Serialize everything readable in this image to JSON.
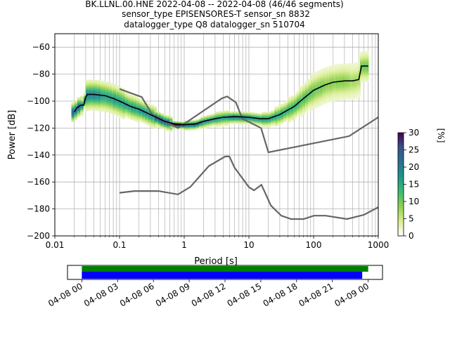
{
  "title_lines": [
    "BK.LLNL.00.HNE   2022-04-08 -- 2022-04-08  (46/46 segments)",
    "sensor_type EPISENSORES-T sensor_sn 8832",
    "datalogger_type Q8 datalogger_sn 510704"
  ],
  "chart_data": [
    {
      "type": "heatmap",
      "xlabel": "Period [s]",
      "ylabel": "Power [dB]",
      "xscale": "log",
      "xlim": [
        0.01,
        1000
      ],
      "ylim": [
        -200,
        -50
      ],
      "xticks": [
        {
          "v": 0.01,
          "label": "0.01"
        },
        {
          "v": 0.1,
          "label": "0.1"
        },
        {
          "v": 1,
          "label": "1"
        },
        {
          "v": 10,
          "label": "10"
        },
        {
          "v": 100,
          "label": "100"
        },
        {
          "v": 1000,
          "label": "1000"
        }
      ],
      "yticks": [
        {
          "v": -60,
          "label": "−60"
        },
        {
          "v": -80,
          "label": "−80"
        },
        {
          "v": -100,
          "label": "−100"
        },
        {
          "v": -120,
          "label": "−120"
        },
        {
          "v": -140,
          "label": "−140"
        },
        {
          "v": -160,
          "label": "−160"
        },
        {
          "v": -180,
          "label": "−180"
        },
        {
          "v": -200,
          "label": "−200"
        }
      ],
      "grid": true,
      "colorbar": {
        "label": "[%]",
        "range": [
          0,
          30
        ],
        "ticks": [
          0,
          5,
          10,
          15,
          20,
          25,
          30
        ],
        "colors": [
          "#ffffff",
          "#d9ed92",
          "#8fd14f",
          "#3cbb75",
          "#1f968b",
          "#2d708e",
          "#3b528b",
          "#440154"
        ]
      },
      "reference_models": [
        {
          "role": "high noise model",
          "color": "#666666",
          "points": [
            [
              0.1,
              -91
            ],
            [
              0.22,
              -97
            ],
            [
              0.32,
              -110
            ],
            [
              0.8,
              -120
            ],
            [
              3.8,
              -98
            ],
            [
              4.6,
              -96.5
            ],
            [
              6.3,
              -101
            ],
            [
              7.9,
              -113
            ],
            [
              15.4,
              -120
            ],
            [
              20,
              -138
            ],
            [
              354.8,
              -126
            ],
            [
              1000,
              -112
            ]
          ]
        },
        {
          "role": "low noise model",
          "color": "#666666",
          "points": [
            [
              0.1,
              -168
            ],
            [
              0.17,
              -166.7
            ],
            [
              0.4,
              -166.7
            ],
            [
              0.8,
              -169.2
            ],
            [
              1.24,
              -163.7
            ],
            [
              2.4,
              -148.2
            ],
            [
              4.3,
              -141.1
            ],
            [
              5,
              -141.1
            ],
            [
              6,
              -149.4
            ],
            [
              10,
              -163.8
            ],
            [
              12,
              -166.2
            ],
            [
              15.6,
              -162.1
            ],
            [
              21.9,
              -177.5
            ],
            [
              31.6,
              -185
            ],
            [
              45,
              -187.5
            ],
            [
              70,
              -187.5
            ],
            [
              101,
              -185
            ],
            [
              154,
              -185
            ],
            [
              328,
              -187.5
            ],
            [
              600,
              -184.4
            ],
            [
              1000,
              -178.7
            ]
          ]
        }
      ],
      "mode_curve": {
        "color": "#000000",
        "points": [
          [
            0.02,
            -108
          ],
          [
            0.022,
            -105
          ],
          [
            0.025,
            -103
          ],
          [
            0.028,
            -103
          ],
          [
            0.03,
            -97
          ],
          [
            0.032,
            -95
          ],
          [
            0.04,
            -95
          ],
          [
            0.06,
            -96
          ],
          [
            0.08,
            -98
          ],
          [
            0.1,
            -100
          ],
          [
            0.15,
            -104
          ],
          [
            0.2,
            -106
          ],
          [
            0.3,
            -110
          ],
          [
            0.5,
            -115
          ],
          [
            0.7,
            -117
          ],
          [
            1,
            -117.5
          ],
          [
            1.5,
            -117
          ],
          [
            2,
            -115
          ],
          [
            3,
            -113
          ],
          [
            4,
            -112
          ],
          [
            6,
            -111.5
          ],
          [
            10,
            -112
          ],
          [
            15,
            -113
          ],
          [
            20,
            -113
          ],
          [
            30,
            -110
          ],
          [
            50,
            -104
          ],
          [
            70,
            -98
          ],
          [
            100,
            -92
          ],
          [
            150,
            -88
          ],
          [
            200,
            -86
          ],
          [
            300,
            -85
          ],
          [
            400,
            -85
          ],
          [
            500,
            -84
          ],
          [
            550,
            -74
          ],
          [
            700,
            -74
          ]
        ]
      },
      "psd_histogram": [
        {
          "x0": 0.018,
          "x1": 0.025,
          "y": -107,
          "spread": 8,
          "hot": 0.7
        },
        {
          "x0": 0.025,
          "x1": 0.03,
          "y": -103,
          "spread": 6,
          "hot": 0.6
        },
        {
          "x0": 0.03,
          "x1": 0.05,
          "y": -96,
          "spread": 12,
          "hot": 0.6
        },
        {
          "x0": 0.05,
          "x1": 0.08,
          "y": -98,
          "spread": 12,
          "hot": 0.5
        },
        {
          "x0": 0.08,
          "x1": 0.12,
          "y": -100,
          "spread": 12,
          "hot": 0.5
        },
        {
          "x0": 0.12,
          "x1": 0.2,
          "y": -104,
          "spread": 10,
          "hot": 0.5
        },
        {
          "x0": 0.2,
          "x1": 0.35,
          "y": -108,
          "spread": 9,
          "hot": 0.55
        },
        {
          "x0": 0.35,
          "x1": 0.6,
          "y": -114,
          "spread": 6,
          "hot": 0.75
        },
        {
          "x0": 0.6,
          "x1": 1,
          "y": -117,
          "spread": 3,
          "hot": 0.95
        },
        {
          "x0": 1,
          "x1": 1.8,
          "y": -117,
          "spread": 4,
          "hot": 0.7
        },
        {
          "x0": 1.8,
          "x1": 3,
          "y": -114,
          "spread": 5,
          "hot": 0.55
        },
        {
          "x0": 3,
          "x1": 5,
          "y": -112,
          "spread": 6,
          "hot": 0.5
        },
        {
          "x0": 5,
          "x1": 9,
          "y": -111,
          "spread": 5,
          "hot": 0.6
        },
        {
          "x0": 9,
          "x1": 16,
          "y": -112,
          "spread": 5,
          "hot": 0.55
        },
        {
          "x0": 16,
          "x1": 25,
          "y": -113,
          "spread": 6,
          "hot": 0.5
        },
        {
          "x0": 25,
          "x1": 40,
          "y": -109,
          "spread": 8,
          "hot": 0.45
        },
        {
          "x0": 40,
          "x1": 60,
          "y": -104,
          "spread": 10,
          "hot": 0.4
        },
        {
          "x0": 60,
          "x1": 90,
          "y": -98,
          "spread": 12,
          "hot": 0.35
        },
        {
          "x0": 90,
          "x1": 140,
          "y": -92,
          "spread": 14,
          "hot": 0.3
        },
        {
          "x0": 140,
          "x1": 220,
          "y": -88,
          "spread": 14,
          "hot": 0.25
        },
        {
          "x0": 220,
          "x1": 350,
          "y": -85,
          "spread": 14,
          "hot": 0.25
        },
        {
          "x0": 350,
          "x1": 520,
          "y": -84,
          "spread": 14,
          "hot": 0.2
        },
        {
          "x0": 520,
          "x1": 700,
          "y": -76,
          "spread": 12,
          "hot": 0.3
        }
      ]
    },
    {
      "type": "timeline",
      "xticks": [
        "04-08 00",
        "04-08 03",
        "04-08 06",
        "04-08 09",
        "04-08 12",
        "04-08 15",
        "04-08 18",
        "04-08 21",
        "04-09 00"
      ],
      "tick_hours": [
        0,
        3,
        6,
        9,
        12,
        15,
        18,
        21,
        24
      ],
      "xlim_hours": [
        -1.2,
        25.2
      ],
      "bars": [
        {
          "role": "data coverage",
          "color": "#008000",
          "start_hour": 0,
          "end_hour": 24.0
        },
        {
          "role": "psd coverage",
          "color": "#0000ff",
          "start_hour": 0,
          "end_hour": 23.5
        }
      ]
    }
  ]
}
